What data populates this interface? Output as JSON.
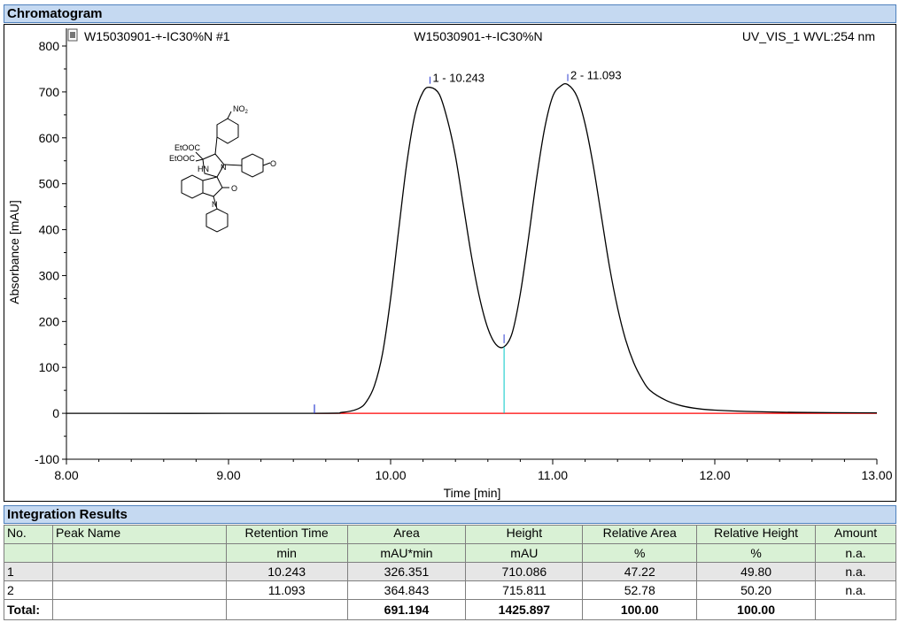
{
  "sections": {
    "chromatogram_title": "Chromatogram",
    "integration_title": "Integration Results"
  },
  "chart_header": {
    "left": "W15030901-+-IC30%N #1",
    "center": "W15030901-+-IC30%N",
    "right": "UV_VIS_1 WVL:254 nm"
  },
  "chart_data": {
    "type": "line",
    "xlabel": "Time [min]",
    "ylabel": "Absorbance [mAU]",
    "xlim": [
      8.0,
      13.0
    ],
    "ylim": [
      -100,
      800
    ],
    "x_ticks": [
      "8.00",
      "9.00",
      "10.00",
      "11.00",
      "12.00",
      "13.00"
    ],
    "y_ticks": [
      "-100",
      "0",
      "100",
      "200",
      "300",
      "400",
      "500",
      "600",
      "700",
      "800"
    ],
    "x_tick_values": [
      8,
      9,
      10,
      11,
      12,
      13
    ],
    "y_tick_values": [
      -100,
      0,
      100,
      200,
      300,
      400,
      500,
      600,
      700,
      800
    ],
    "series": [
      {
        "color": "#000000",
        "x": [
          8.0,
          9.5,
          9.7,
          9.8,
          9.85,
          9.9,
          9.95,
          10.0,
          10.05,
          10.1,
          10.15,
          10.2,
          10.243,
          10.3,
          10.35,
          10.4,
          10.45,
          10.5,
          10.55,
          10.6,
          10.65,
          10.7,
          10.75,
          10.8,
          10.85,
          10.9,
          10.95,
          11.0,
          11.05,
          11.093,
          11.15,
          11.2,
          11.25,
          11.3,
          11.35,
          11.4,
          11.45,
          11.5,
          11.55,
          11.6,
          11.7,
          11.8,
          11.9,
          12.0,
          12.2,
          12.5,
          13.0
        ],
        "y": [
          0,
          0,
          2,
          10,
          25,
          60,
          130,
          250,
          400,
          545,
          650,
          700,
          710,
          695,
          640,
          560,
          450,
          340,
          250,
          185,
          150,
          145,
          175,
          260,
          380,
          510,
          620,
          690,
          713,
          716,
          690,
          630,
          540,
          430,
          320,
          230,
          160,
          110,
          75,
          50,
          28,
          16,
          10,
          7,
          4,
          2,
          1
        ]
      }
    ],
    "baseline": {
      "color": "#ff0000",
      "x": [
        9.53,
        13.0
      ],
      "y": [
        0,
        0
      ]
    },
    "peaks": [
      {
        "label": "1 - 10.243",
        "x": 10.243,
        "y": 710.086
      },
      {
        "label": "2 - 11.093",
        "x": 11.093,
        "y": 715.811
      }
    ],
    "markers": [
      {
        "x": 9.53,
        "y": 0,
        "color": "#2f3fd1"
      },
      {
        "x": 10.7,
        "y": 145,
        "color": "#00c8c8",
        "drop": true
      }
    ],
    "grid": false,
    "legend": "none"
  },
  "molecule": {
    "labels": [
      "NO2",
      "EtOOC",
      "EtOOC",
      "HN",
      "N",
      "O",
      "N",
      "O"
    ]
  },
  "table": {
    "headers_row1": [
      "No.",
      "Peak Name",
      "Retention Time",
      "Area",
      "Height",
      "Relative Area",
      "Relative Height",
      "Amount"
    ],
    "headers_row2": [
      "",
      "",
      "min",
      "mAU*min",
      "mAU",
      "%",
      "%",
      "n.a."
    ],
    "rows": [
      [
        "1",
        "",
        "10.243",
        "326.351",
        "710.086",
        "47.22",
        "49.80",
        "n.a."
      ],
      [
        "2",
        "",
        "11.093",
        "364.843",
        "715.811",
        "52.78",
        "50.20",
        "n.a."
      ]
    ],
    "total": [
      "Total:",
      "",
      "",
      "691.194",
      "1425.897",
      "100.00",
      "100.00",
      ""
    ]
  }
}
